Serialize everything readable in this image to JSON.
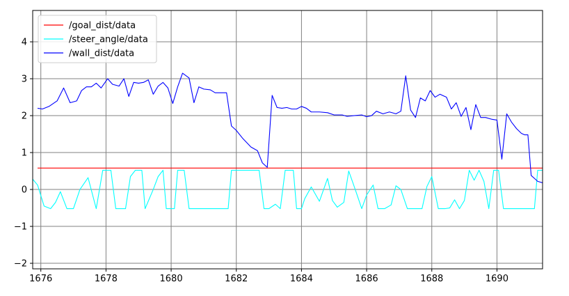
{
  "chart_data": {
    "type": "line",
    "title": "",
    "xlabel": "",
    "ylabel": "",
    "xlim": [
      1675.75,
      1691.4
    ],
    "ylim": [
      -2.15,
      4.85
    ],
    "x_ticks": [
      1676,
      1678,
      1680,
      1682,
      1684,
      1686,
      1688,
      1690
    ],
    "y_ticks": [
      -2,
      -1,
      0,
      1,
      2,
      3,
      4
    ],
    "grid": true,
    "grid_color": "#808080",
    "legend_position": "top-left",
    "series": [
      {
        "name": "/goal_dist/data",
        "color": "#ff0000",
        "points": [
          [
            1675.9,
            0.58
          ],
          [
            1691.4,
            0.58
          ]
        ]
      },
      {
        "name": "/steer_angle/data",
        "color": "#00ffff",
        "points": [
          [
            1675.75,
            0.28
          ],
          [
            1675.9,
            0.12
          ],
          [
            1676.1,
            -0.45
          ],
          [
            1676.3,
            -0.52
          ],
          [
            1676.45,
            -0.35
          ],
          [
            1676.6,
            -0.06
          ],
          [
            1676.8,
            -0.52
          ],
          [
            1677.0,
            -0.52
          ],
          [
            1677.2,
            0.0
          ],
          [
            1677.45,
            0.32
          ],
          [
            1677.7,
            -0.52
          ],
          [
            1677.9,
            0.52
          ],
          [
            1678.15,
            0.52
          ],
          [
            1678.3,
            -0.52
          ],
          [
            1678.6,
            -0.52
          ],
          [
            1678.75,
            0.35
          ],
          [
            1678.9,
            0.52
          ],
          [
            1679.1,
            0.52
          ],
          [
            1679.2,
            -0.52
          ],
          [
            1679.45,
            0.0
          ],
          [
            1679.6,
            0.35
          ],
          [
            1679.75,
            0.52
          ],
          [
            1679.85,
            -0.52
          ],
          [
            1680.1,
            -0.52
          ],
          [
            1680.2,
            0.52
          ],
          [
            1680.4,
            0.52
          ],
          [
            1680.55,
            -0.52
          ],
          [
            1681.0,
            -0.52
          ],
          [
            1681.5,
            -0.52
          ],
          [
            1681.75,
            -0.52
          ],
          [
            1681.85,
            0.52
          ],
          [
            1682.2,
            0.52
          ],
          [
            1682.7,
            0.52
          ],
          [
            1682.85,
            -0.52
          ],
          [
            1683.0,
            -0.52
          ],
          [
            1683.2,
            -0.4
          ],
          [
            1683.35,
            -0.52
          ],
          [
            1683.5,
            0.52
          ],
          [
            1683.75,
            0.52
          ],
          [
            1683.85,
            -0.52
          ],
          [
            1684.0,
            -0.52
          ],
          [
            1684.1,
            -0.25
          ],
          [
            1684.3,
            0.07
          ],
          [
            1684.55,
            -0.32
          ],
          [
            1684.8,
            0.3
          ],
          [
            1684.95,
            -0.3
          ],
          [
            1685.1,
            -0.48
          ],
          [
            1685.3,
            -0.35
          ],
          [
            1685.45,
            0.5
          ],
          [
            1685.65,
            0.0
          ],
          [
            1685.85,
            -0.52
          ],
          [
            1686.0,
            -0.15
          ],
          [
            1686.2,
            0.12
          ],
          [
            1686.35,
            -0.52
          ],
          [
            1686.55,
            -0.52
          ],
          [
            1686.75,
            -0.42
          ],
          [
            1686.9,
            0.1
          ],
          [
            1687.05,
            0.0
          ],
          [
            1687.25,
            -0.52
          ],
          [
            1687.5,
            -0.52
          ],
          [
            1687.7,
            -0.52
          ],
          [
            1687.85,
            0.08
          ],
          [
            1688.0,
            0.35
          ],
          [
            1688.2,
            -0.52
          ],
          [
            1688.4,
            -0.52
          ],
          [
            1688.55,
            -0.5
          ],
          [
            1688.7,
            -0.28
          ],
          [
            1688.85,
            -0.52
          ],
          [
            1689.0,
            -0.3
          ],
          [
            1689.15,
            0.52
          ],
          [
            1689.3,
            0.25
          ],
          [
            1689.45,
            0.52
          ],
          [
            1689.6,
            0.22
          ],
          [
            1689.75,
            -0.52
          ],
          [
            1689.9,
            0.52
          ],
          [
            1690.05,
            0.52
          ],
          [
            1690.2,
            -0.52
          ],
          [
            1690.5,
            -0.52
          ],
          [
            1690.8,
            -0.52
          ],
          [
            1691.15,
            -0.52
          ],
          [
            1691.25,
            0.52
          ],
          [
            1691.4,
            0.52
          ]
        ]
      },
      {
        "name": "/wall_dist/data",
        "color": "#0000ff",
        "points": [
          [
            1675.9,
            2.2
          ],
          [
            1676.05,
            2.18
          ],
          [
            1676.25,
            2.25
          ],
          [
            1676.5,
            2.4
          ],
          [
            1676.7,
            2.75
          ],
          [
            1676.9,
            2.35
          ],
          [
            1677.1,
            2.4
          ],
          [
            1677.25,
            2.68
          ],
          [
            1677.4,
            2.78
          ],
          [
            1677.55,
            2.78
          ],
          [
            1677.7,
            2.88
          ],
          [
            1677.85,
            2.75
          ],
          [
            1678.05,
            3.0
          ],
          [
            1678.2,
            2.85
          ],
          [
            1678.4,
            2.8
          ],
          [
            1678.55,
            3.0
          ],
          [
            1678.7,
            2.52
          ],
          [
            1678.85,
            2.9
          ],
          [
            1679.0,
            2.88
          ],
          [
            1679.15,
            2.9
          ],
          [
            1679.3,
            2.97
          ],
          [
            1679.45,
            2.58
          ],
          [
            1679.6,
            2.8
          ],
          [
            1679.75,
            2.9
          ],
          [
            1679.9,
            2.75
          ],
          [
            1680.05,
            2.33
          ],
          [
            1680.2,
            2.78
          ],
          [
            1680.35,
            3.15
          ],
          [
            1680.55,
            3.02
          ],
          [
            1680.7,
            2.35
          ],
          [
            1680.85,
            2.78
          ],
          [
            1681.0,
            2.72
          ],
          [
            1681.2,
            2.7
          ],
          [
            1681.35,
            2.62
          ],
          [
            1681.5,
            2.62
          ],
          [
            1681.7,
            2.62
          ],
          [
            1681.85,
            1.72
          ],
          [
            1682.0,
            1.6
          ],
          [
            1682.2,
            1.38
          ],
          [
            1682.45,
            1.15
          ],
          [
            1682.65,
            1.05
          ],
          [
            1682.8,
            0.72
          ],
          [
            1682.95,
            0.6
          ],
          [
            1683.1,
            2.55
          ],
          [
            1683.25,
            2.22
          ],
          [
            1683.4,
            2.2
          ],
          [
            1683.55,
            2.22
          ],
          [
            1683.7,
            2.18
          ],
          [
            1683.85,
            2.18
          ],
          [
            1684.0,
            2.25
          ],
          [
            1684.15,
            2.2
          ],
          [
            1684.3,
            2.1
          ],
          [
            1684.55,
            2.1
          ],
          [
            1684.8,
            2.08
          ],
          [
            1685.0,
            2.02
          ],
          [
            1685.25,
            2.02
          ],
          [
            1685.4,
            1.98
          ],
          [
            1685.6,
            2.0
          ],
          [
            1685.85,
            2.02
          ],
          [
            1686.0,
            1.97
          ],
          [
            1686.15,
            2.0
          ],
          [
            1686.3,
            2.12
          ],
          [
            1686.5,
            2.05
          ],
          [
            1686.7,
            2.1
          ],
          [
            1686.9,
            2.05
          ],
          [
            1687.05,
            2.12
          ],
          [
            1687.2,
            3.08
          ],
          [
            1687.35,
            2.15
          ],
          [
            1687.5,
            1.95
          ],
          [
            1687.65,
            2.48
          ],
          [
            1687.8,
            2.4
          ],
          [
            1687.95,
            2.68
          ],
          [
            1688.1,
            2.5
          ],
          [
            1688.25,
            2.58
          ],
          [
            1688.45,
            2.5
          ],
          [
            1688.6,
            2.18
          ],
          [
            1688.75,
            2.35
          ],
          [
            1688.9,
            1.98
          ],
          [
            1689.05,
            2.22
          ],
          [
            1689.2,
            1.62
          ],
          [
            1689.35,
            2.3
          ],
          [
            1689.5,
            1.95
          ],
          [
            1689.65,
            1.95
          ],
          [
            1689.85,
            1.9
          ],
          [
            1690.0,
            1.88
          ],
          [
            1690.15,
            0.82
          ],
          [
            1690.3,
            2.05
          ],
          [
            1690.45,
            1.82
          ],
          [
            1690.6,
            1.65
          ],
          [
            1690.75,
            1.52
          ],
          [
            1690.85,
            1.48
          ],
          [
            1690.95,
            1.48
          ],
          [
            1691.05,
            0.38
          ],
          [
            1691.15,
            0.3
          ],
          [
            1691.25,
            0.22
          ],
          [
            1691.4,
            0.18
          ]
        ]
      }
    ]
  }
}
